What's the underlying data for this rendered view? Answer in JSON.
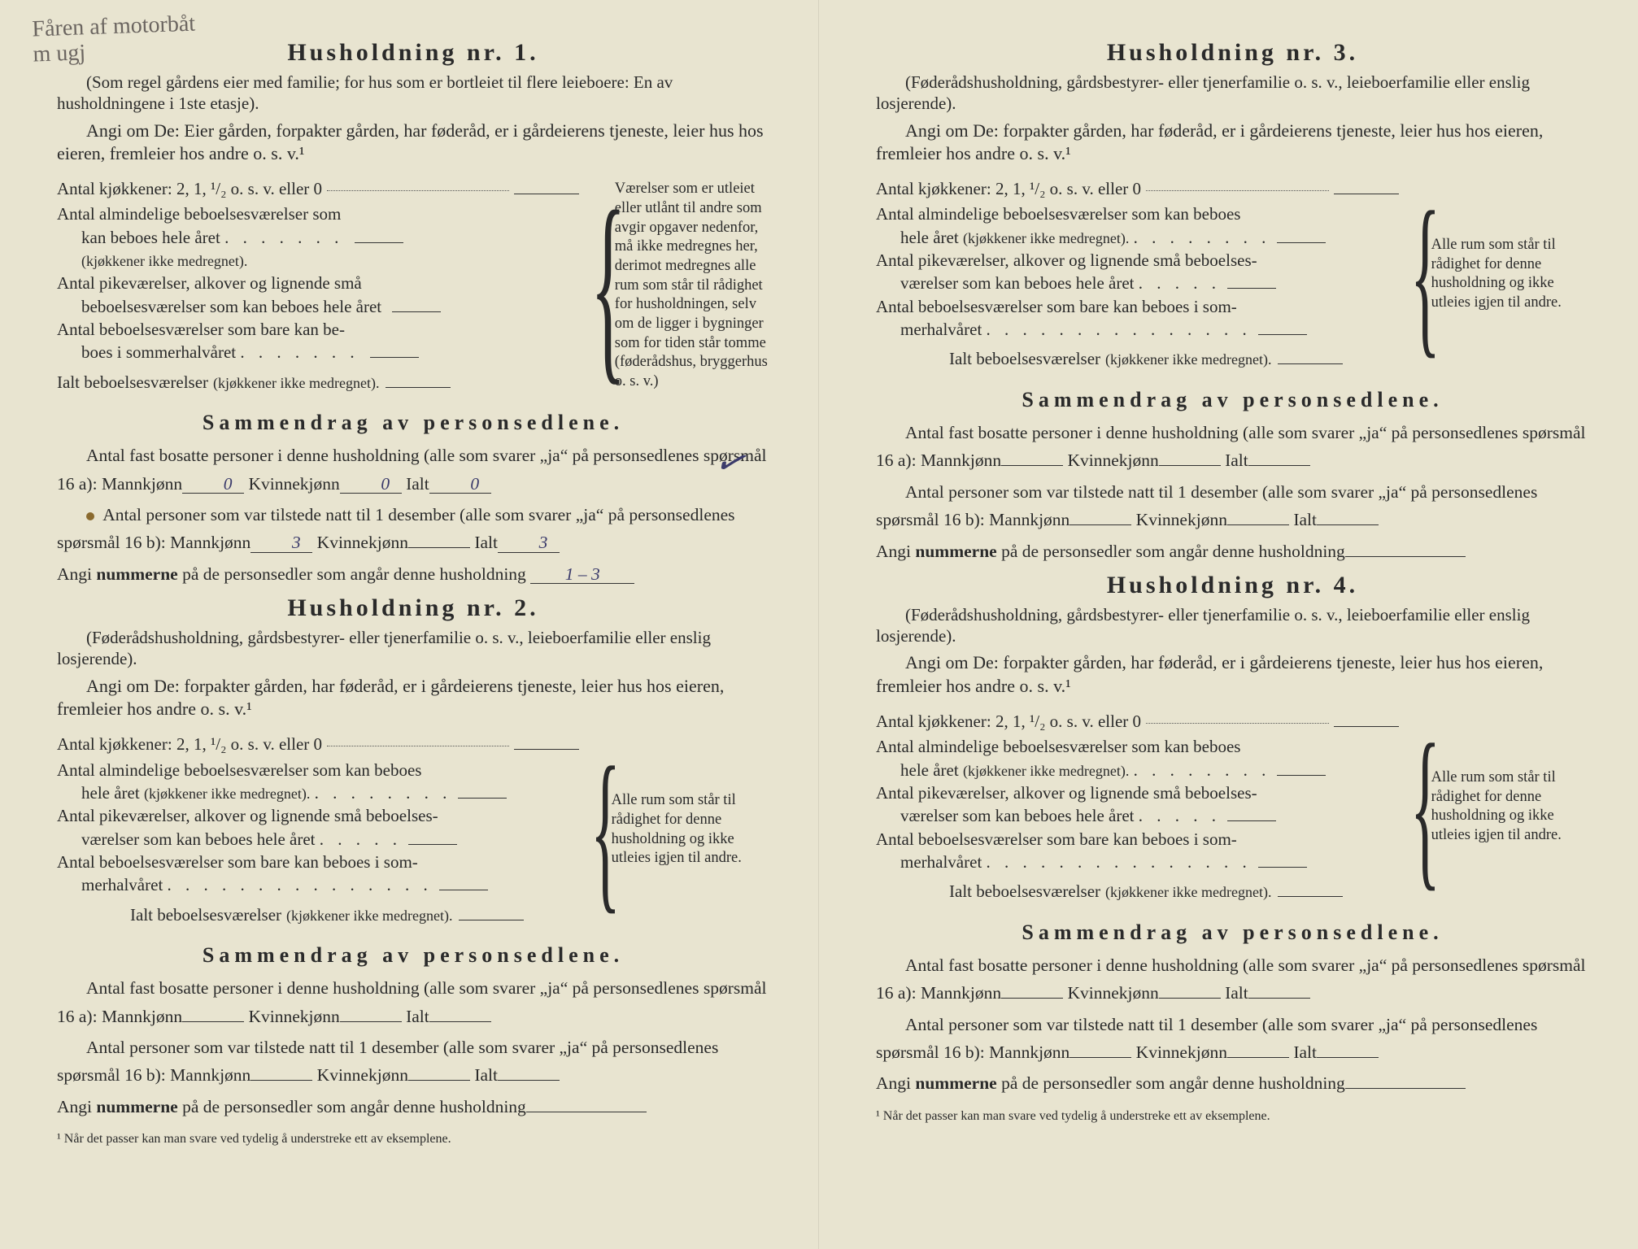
{
  "handwriting": "Fåren af motorbåt\nm ugj",
  "common": {
    "kitchens_line": "Antal kjøkkener: 2, 1, ¹/₂ o. s. v. eller 0",
    "rooms_year": "Antal almindelige beboelsesværelser som kan beboes hele året",
    "rooms_year_sub": "(kjøkkener ikke medregnet).",
    "pike_rooms": "Antal pikeværelser, alkover og lignende små beboelsesværelser som kan beboes hele året",
    "summer_rooms": "Antal beboelsesværelser som bare kan beboes i sommerhalvåret",
    "total_rooms": "Ialt beboelsesværelser",
    "total_rooms_sub": "(kjøkkener ikke medregnet).",
    "sammendrag_title": "Sammendrag av personsedlene.",
    "fast_bosatte": "Antal fast bosatte personer i denne husholdning (alle som svarer „ja“ på personsedlenes spørsmål 16 a):",
    "tilstede": "Antal personer som var tilstede natt til 1 desember (alle som svarer „ja“ på personsedlenes spørsmål 16 b):",
    "mann_label": "Mannkjønn",
    "kvinne_label": "Kvinnekjønn",
    "ialt_label": "Ialt",
    "nummerne": "Angi nummerne på de personsedler som angår denne husholdning",
    "footnote": "¹  Når det passer kan man svare ved tydelig å understreke ett av eksemplene.",
    "foderads_intro": "(Føderådshusholdning, gårdsbestyrer- eller tjenerfamilie o. s. v., leieboerfamilie eller enslig losjerende).",
    "angi_short": "Angi om De:  forpakter gården, har føderåd, er i gårdeierens tjeneste, leier hus hos eieren, fremleier hos andre o. s. v.¹",
    "brace_text_short": "Alle rum som står til rådighet for denne husholdning og ikke utleies igjen til andre."
  },
  "h1": {
    "title": "Husholdning nr. 1.",
    "intro": "(Som regel gårdens eier med familie; for hus som er bortleiet til flere leieboere: En av husholdningene i 1ste etasje).",
    "angi": "Angi om De: Eier gården, forpakter gården, har føderåd, er i gårdeierens tjeneste, leier hus hos eieren, fremleier hos andre o. s. v.¹",
    "brace_text": "Værelser som er utleiet eller utlånt til andre som avgir opgaver nedenfor, må ikke medregnes her, derimot medregnes alle rum som står til rådighet for husholdningen, selv om de ligger i bygninger som for tiden står tomme (føderådshus, bryggerhus o. s. v.)",
    "fast_m": "0",
    "fast_k": "0",
    "fast_t": "0",
    "til_m": "3",
    "til_k": "",
    "til_t": "3",
    "nums": "1 – 3"
  },
  "h2": {
    "title": "Husholdning nr. 2."
  },
  "h3": {
    "title": "Husholdning nr. 3."
  },
  "h4": {
    "title": "Husholdning nr. 4."
  }
}
